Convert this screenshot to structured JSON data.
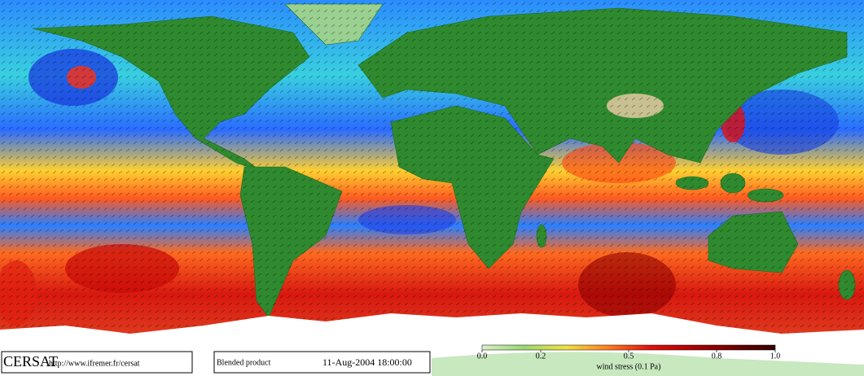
{
  "footer": {
    "logo": "CERSAT",
    "url": "http://www.ifremer.fr/cersat",
    "product": "Blended product",
    "datetime": "11-Aug-2004 18:00:00"
  },
  "colorbar": {
    "label": "wind stress (0.1 Pa)",
    "lim": [
      0,
      1
    ],
    "ticks": [
      {
        "value": 0,
        "label": "0.0"
      },
      0.2,
      0.5,
      0.8,
      {
        "value": 1,
        "label": "1.0"
      }
    ],
    "colors": [
      "#d8f0c8",
      "#9ad870",
      "#f0e040",
      "#ff8020",
      "#e01010",
      "#b00000",
      "#700000",
      "#300000"
    ]
  }
}
